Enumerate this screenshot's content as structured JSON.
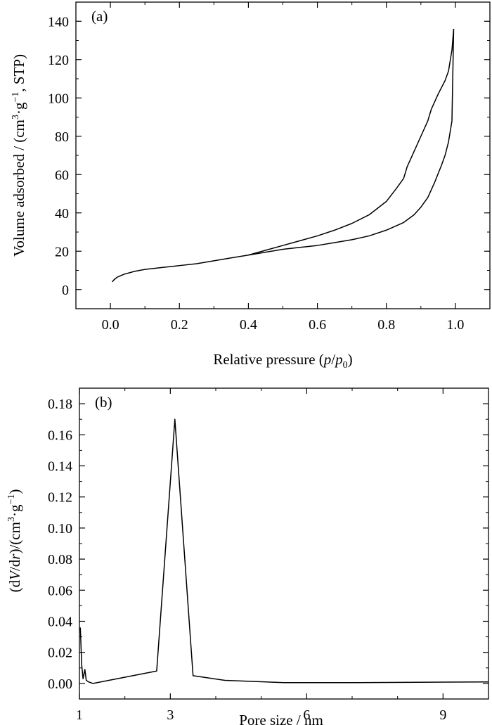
{
  "chart_data": [
    {
      "type": "line",
      "panel_label": "(a)",
      "xlabel": "Relative pressure (p/p₀)",
      "xlabel_parts": [
        "Relative pressure (",
        "p",
        "/",
        "p",
        "0",
        ")"
      ],
      "ylabel": "Volume adsorbed / (cm³·g⁻¹, STP)",
      "ylabel_parts": [
        "Volume adsorbed / (cm",
        "3",
        "·g",
        "−1",
        ", STP)"
      ],
      "xlim": [
        -0.1,
        1.1
      ],
      "ylim": [
        -10,
        150
      ],
      "xticks": [
        0.0,
        0.2,
        0.4,
        0.6,
        0.8,
        1.0
      ],
      "xtick_labels": [
        "0.0",
        "0.2",
        "0.4",
        "0.6",
        "0.8",
        "1.0"
      ],
      "yticks": [
        0,
        20,
        40,
        60,
        80,
        100,
        120,
        140
      ],
      "ytick_labels": [
        "0",
        "20",
        "40",
        "60",
        "80",
        "100",
        "120",
        "140"
      ],
      "grid": false,
      "series": [
        {
          "x": [
            0.005,
            0.01,
            0.02,
            0.04,
            0.07,
            0.1,
            0.15,
            0.2,
            0.25,
            0.3,
            0.35,
            0.4,
            0.45,
            0.5,
            0.55,
            0.6,
            0.65,
            0.7,
            0.75,
            0.8,
            0.85,
            0.88,
            0.9,
            0.92,
            0.94,
            0.96,
            0.97,
            0.98,
            0.99,
            0.995
          ],
          "y": [
            4,
            5,
            6.5,
            8,
            9.5,
            10.5,
            11.5,
            12.5,
            13.5,
            15,
            16.5,
            18,
            19.5,
            21,
            22,
            23,
            24.5,
            26,
            28,
            31,
            35,
            39,
            43,
            48,
            56,
            65,
            70,
            77,
            88,
            136
          ]
        },
        {
          "x": [
            0.4,
            0.45,
            0.5,
            0.55,
            0.6,
            0.65,
            0.7,
            0.75,
            0.8,
            0.83,
            0.85,
            0.86,
            0.88,
            0.9,
            0.92,
            0.93,
            0.95,
            0.97,
            0.98,
            0.99,
            0.995
          ],
          "y": [
            18,
            20.5,
            23,
            25.5,
            28,
            31,
            34.5,
            39,
            46,
            53,
            58,
            64,
            72,
            80,
            88,
            94,
            102,
            109,
            114,
            125,
            136
          ]
        }
      ]
    },
    {
      "type": "line",
      "panel_label": "(b)",
      "xlabel": "Pore size / nm",
      "ylabel": "(dV/dr)/(cm³·g⁻¹)",
      "ylabel_parts": [
        "(d",
        "V",
        "/d",
        "r",
        ")/(cm",
        "3",
        "·g",
        "−1",
        ")"
      ],
      "xlim": [
        1,
        10
      ],
      "ylim": [
        -0.01,
        0.19
      ],
      "xticks": [
        1,
        3,
        6,
        9
      ],
      "xtick_labels": [
        "1",
        "3",
        "6",
        "9"
      ],
      "yticks": [
        0.0,
        0.02,
        0.04,
        0.06,
        0.08,
        0.1,
        0.12,
        0.14,
        0.16,
        0.18
      ],
      "ytick_labels": [
        "0.00",
        "0.02",
        "0.04",
        "0.06",
        "0.08",
        "0.10",
        "0.12",
        "0.14",
        "0.16",
        "0.18"
      ],
      "grid": false,
      "series": [
        {
          "x": [
            1.02,
            1.05,
            1.08,
            1.12,
            1.15,
            1.2,
            1.3,
            2.7,
            3.1,
            3.5,
            4.2,
            5.5,
            7.0,
            10.0
          ],
          "y": [
            0.036,
            0.012,
            0.003,
            0.009,
            0.002,
            0.001,
            0.0,
            0.008,
            0.17,
            0.005,
            0.002,
            0.0005,
            0.0005,
            0.001
          ]
        }
      ]
    }
  ]
}
